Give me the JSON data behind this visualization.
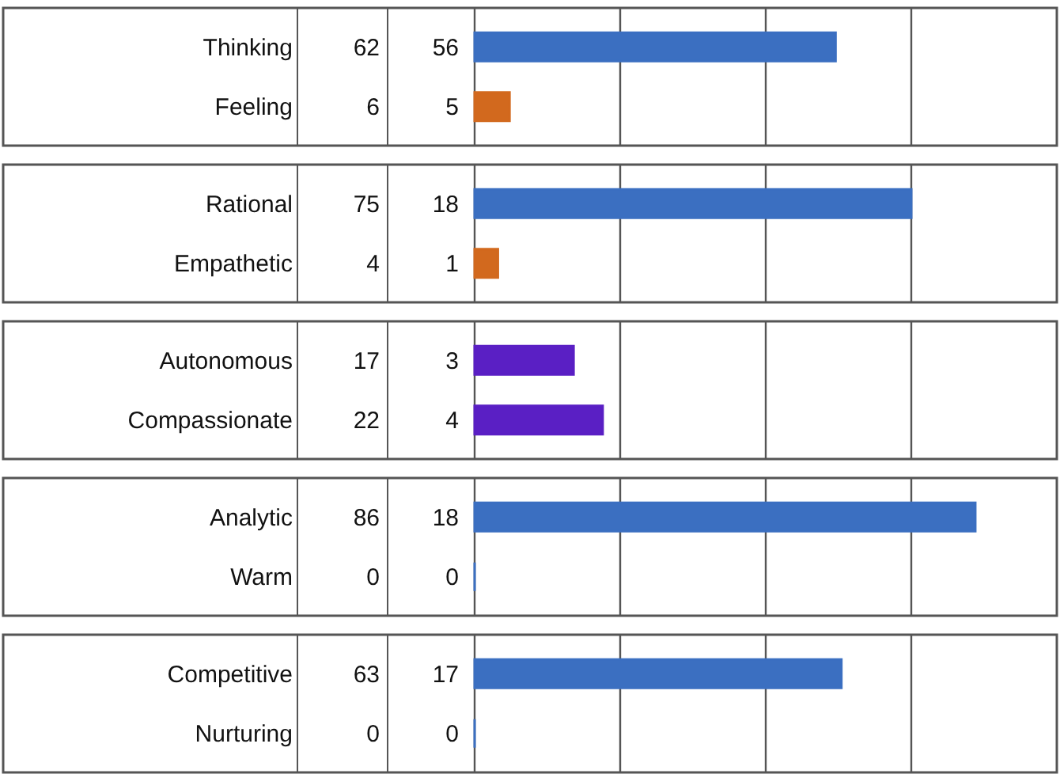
{
  "chart_data": [
    {
      "type": "bar",
      "orientation": "horizontal",
      "categories": [
        "Thinking",
        "Feeling"
      ],
      "values": [
        62,
        6
      ],
      "colors": [
        "#3b6fc1",
        "#d2691e"
      ],
      "data_labels": true,
      "annotations": [
        "56",
        "5"
      ],
      "xlim": [
        0,
        100
      ],
      "xticks": [
        {
          "value": 0,
          "label": null
        },
        {
          "value": 25,
          "label": null
        },
        {
          "value": 50,
          "label": null
        },
        {
          "value": 75,
          "label": null
        }
      ],
      "grid": "x",
      "tick_labels": "y"
    },
    {
      "type": "bar",
      "orientation": "horizontal",
      "categories": [
        "Rational",
        "Empathetic"
      ],
      "values": [
        75,
        4
      ],
      "colors": [
        "#3b6fc1",
        "#d2691e"
      ],
      "data_labels": true,
      "annotations": [
        "18",
        "1"
      ],
      "xlim": [
        0,
        100
      ],
      "xticks": [
        {
          "value": 0,
          "label": null
        },
        {
          "value": 25,
          "label": null
        },
        {
          "value": 50,
          "label": null
        },
        {
          "value": 75,
          "label": null
        }
      ],
      "grid": "x",
      "tick_labels": "y"
    },
    {
      "type": "bar",
      "orientation": "horizontal",
      "categories": [
        "Autonomous",
        "Compassionate"
      ],
      "values": [
        17,
        22
      ],
      "colors": [
        "#5a1fc4",
        "#5a1fc4"
      ],
      "data_labels": true,
      "annotations": [
        "3",
        "4"
      ],
      "xlim": [
        0,
        100
      ],
      "xticks": [
        {
          "value": 0,
          "label": null
        },
        {
          "value": 25,
          "label": null
        },
        {
          "value": 50,
          "label": null
        },
        {
          "value": 75,
          "label": null
        }
      ],
      "grid": "x",
      "tick_labels": "y"
    },
    {
      "type": "bar",
      "orientation": "horizontal",
      "categories": [
        "Analytic",
        "Warm"
      ],
      "values": [
        86,
        0
      ],
      "colors": [
        "#3b6fc1",
        "#3b6fc1"
      ],
      "data_labels": true,
      "annotations": [
        "18",
        "0"
      ],
      "xlim": [
        0,
        100
      ],
      "xticks": [
        {
          "value": 0,
          "label": null
        },
        {
          "value": 25,
          "label": null
        },
        {
          "value": 50,
          "label": null
        },
        {
          "value": 75,
          "label": null
        }
      ],
      "grid": "x",
      "tick_labels": "y"
    },
    {
      "type": "bar",
      "orientation": "horizontal",
      "categories": [
        "Competitive",
        "Nurturing"
      ],
      "values": [
        63,
        0
      ],
      "colors": [
        "#3b6fc1",
        "#3b6fc1"
      ],
      "data_labels": true,
      "annotations": [
        "17",
        "0"
      ],
      "xlim": [
        0,
        100
      ],
      "xticks": [
        {
          "value": 0,
          "label": null
        },
        {
          "value": 25,
          "label": null
        },
        {
          "value": 50,
          "label": null
        },
        {
          "value": 75,
          "label": null
        }
      ],
      "grid": "x",
      "tick_labels": "y"
    }
  ]
}
